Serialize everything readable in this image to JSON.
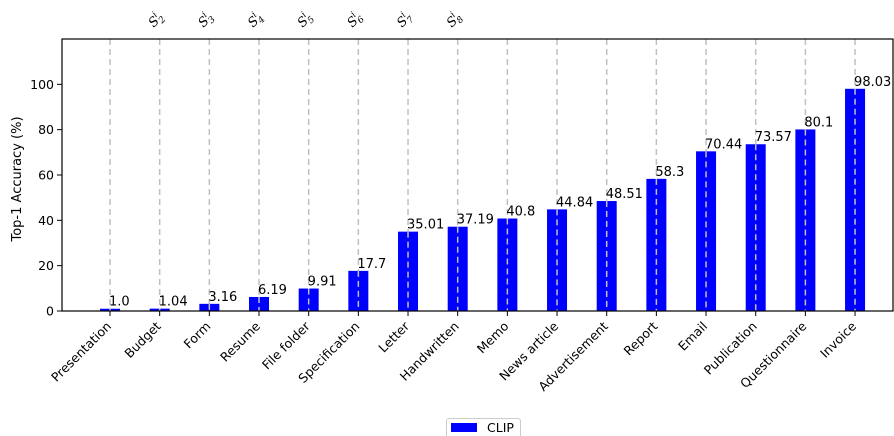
{
  "chart_data": {
    "type": "bar",
    "categories": [
      "Presentation",
      "Budget",
      "Form",
      "Resume",
      "File folder",
      "Specification",
      "Letter",
      "Handwritten",
      "Memo",
      "News article",
      "Advertisement",
      "Report",
      "Email",
      "Publication",
      "Questionnaire",
      "Invoice"
    ],
    "series": [
      {
        "name": "CLIP",
        "color": "#0000ff",
        "values": [
          1.0,
          1.04,
          3.16,
          6.19,
          9.91,
          17.7,
          35.01,
          37.19,
          40.8,
          44.84,
          48.51,
          58.3,
          70.44,
          73.57,
          80.1,
          98.03
        ],
        "value_labels": [
          "1.0",
          "1.04",
          "3.16",
          "6.19",
          "9.91",
          "17.7",
          "35.01",
          "37.19",
          "40.8",
          "44.84",
          "48.51",
          "58.3",
          "70.44",
          "73.57",
          "80.1",
          "98.03"
        ]
      }
    ],
    "ylabel": "Top-1 Accuracy (%)",
    "xlabel": "",
    "ylim": [
      0,
      120
    ],
    "yticks": [
      0,
      20,
      40,
      60,
      80,
      100
    ],
    "grid": false,
    "legend_position": "bottom-center",
    "reference_lines": {
      "style": "dashed",
      "color": "#c0c0c0",
      "at_every_category": true
    },
    "top_annotations": [
      {
        "base": "S",
        "sup": "i",
        "sub": "2"
      },
      {
        "base": "S",
        "sup": "i",
        "sub": "3"
      },
      {
        "base": "S",
        "sup": "i",
        "sub": "4"
      },
      {
        "base": "S",
        "sup": "i",
        "sub": "5"
      },
      {
        "base": "S",
        "sup": "i",
        "sub": "6"
      },
      {
        "base": "S",
        "sup": "i",
        "sub": "7"
      },
      {
        "base": "S",
        "sup": "i",
        "sub": "8"
      }
    ]
  }
}
